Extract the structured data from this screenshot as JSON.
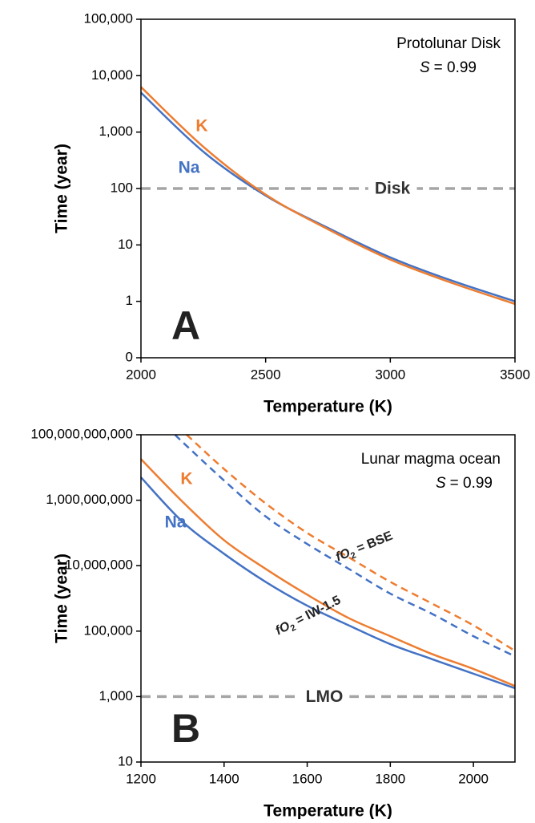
{
  "chart_data": [
    {
      "type": "line",
      "panel_label": "A",
      "annotation": "Protolunar Disk",
      "s_symbol": "S",
      "s_value": "= 0.99",
      "x_label": "Temperature (K)",
      "y_label": "Time (year)",
      "y_scale": "log",
      "xlim": [
        2000,
        3500
      ],
      "xticks": [
        2000,
        2500,
        3000,
        3500
      ],
      "ylim": [
        0.1,
        100000
      ],
      "yticks": [
        {
          "value": 0.1,
          "label": "0"
        },
        1,
        10,
        100,
        {
          "value": 1000,
          "label": "1,000"
        },
        {
          "value": 10000,
          "label": "10,000"
        },
        {
          "value": 100000,
          "label": "100,000"
        }
      ],
      "series": [
        {
          "name": "Na",
          "color": "#4472c4",
          "dash": false,
          "x": [
            2000,
            2250,
            2500,
            2750,
            3000,
            3250,
            3500
          ],
          "values": [
            5000,
            450,
            75,
            20,
            6,
            2.3,
            1.0
          ]
        },
        {
          "name": "K",
          "color": "#ed7d31",
          "dash": false,
          "x": [
            2000,
            2250,
            2500,
            2750,
            3000,
            3250,
            3500
          ],
          "values": [
            6300,
            550,
            78,
            19,
            5.5,
            2.1,
            0.9
          ]
        }
      ],
      "reference_line": {
        "value": 100,
        "label": "Disk",
        "color": "#a5a5a5"
      }
    },
    {
      "type": "line",
      "panel_label": "B",
      "annotation": "Lunar magma ocean",
      "s_symbol": "S",
      "s_value": "= 0.99",
      "x_label": "Temperature (K)",
      "y_label": "Time (year)",
      "y_scale": "log",
      "xlim": [
        1200,
        2100
      ],
      "xticks": [
        1200,
        1400,
        1600,
        1800,
        2000
      ],
      "ylim": [
        10,
        100000000000
      ],
      "yticks": [
        10,
        {
          "value": 1000,
          "label": "1,000"
        },
        {
          "value": 100000,
          "label": "100,000"
        },
        {
          "value": 10000000,
          "label": "10,000,000"
        },
        {
          "value": 1000000000,
          "label": "1,000,000,000"
        },
        {
          "value": 100000000000,
          "label": "100,000,000,000"
        }
      ],
      "series": [
        {
          "name": "Na",
          "color": "#4472c4",
          "dash": false,
          "x": [
            1200,
            1300,
            1400,
            1500,
            1600,
            1700,
            1800,
            1900,
            2000,
            2100
          ],
          "values": [
            5000000000,
            220000000,
            23000000,
            3200000,
            600000,
            150000,
            40000,
            14000,
            5000,
            1800
          ]
        },
        {
          "name": "K",
          "color": "#ed7d31",
          "dash": false,
          "x": [
            1200,
            1300,
            1400,
            1500,
            1600,
            1700,
            1800,
            1900,
            2000,
            2100
          ],
          "values": [
            18000000000,
            900000000,
            60000000,
            8000000,
            1300000,
            250000,
            70000,
            20000,
            7000,
            2100
          ]
        },
        {
          "name": "Na",
          "color": "#4472c4",
          "dash": true,
          "x": [
            1282,
            1300,
            1400,
            1500,
            1600,
            1700,
            1800,
            1900,
            2000,
            2100
          ],
          "values": [
            100000000000,
            60000000000,
            4000000000,
            320000000,
            46000000,
            8000000,
            1400000,
            340000,
            70000,
            17000
          ]
        },
        {
          "name": "K",
          "color": "#ed7d31",
          "dash": true,
          "x": [
            1310,
            1400,
            1500,
            1600,
            1700,
            1800,
            1900,
            2000,
            2100
          ],
          "values": [
            100000000000,
            9000000000,
            800000000,
            100000000,
            18000000,
            3200000,
            700000,
            150000,
            25000
          ]
        }
      ],
      "curve_labels": [
        {
          "text": "fO",
          "subscript": "2",
          "suffix": " = BSE"
        },
        {
          "text": "fO",
          "subscript": "2",
          "suffix": " = IW-1.5"
        }
      ],
      "reference_line": {
        "value": 1000,
        "label": "LMO",
        "color": "#a5a5a5"
      }
    }
  ]
}
